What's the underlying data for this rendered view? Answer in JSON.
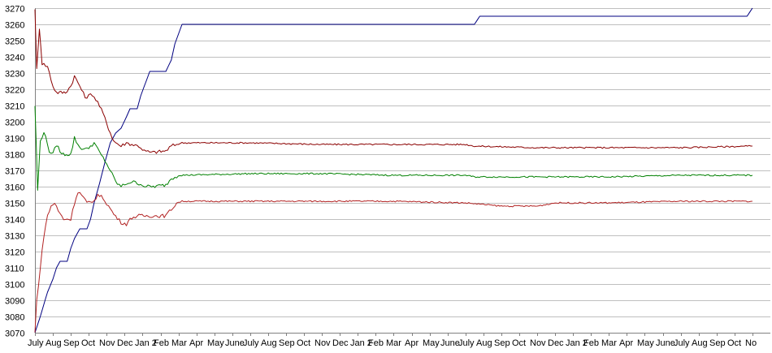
{
  "chart_data": {
    "type": "line",
    "title": "",
    "xlabel": "",
    "ylabel": "",
    "ylim": [
      3070,
      3270
    ],
    "yticks": [
      3070,
      3080,
      3090,
      3100,
      3110,
      3120,
      3130,
      3140,
      3150,
      3160,
      3170,
      3180,
      3190,
      3200,
      3210,
      3220,
      3230,
      3240,
      3250,
      3260,
      3270
    ],
    "grid": "horizontal",
    "legend": "none",
    "x_periods": 41,
    "xticks": [
      {
        "label": "July",
        "t": 0
      },
      {
        "label": "Aug",
        "t": 1
      },
      {
        "label": "Sep",
        "t": 2
      },
      {
        "label": "Oct",
        "t": 3
      },
      {
        "label": "Nov",
        "t": 4
      },
      {
        "label": "Dec",
        "t": 5
      },
      {
        "label": "Jan 2",
        "t": 6
      },
      {
        "label": "Feb",
        "t": 7
      },
      {
        "label": "Mar",
        "t": 8
      },
      {
        "label": "Apr",
        "t": 9
      },
      {
        "label": "May",
        "t": 10
      },
      {
        "label": "June",
        "t": 11
      },
      {
        "label": "July",
        "t": 12
      },
      {
        "label": "Aug",
        "t": 13
      },
      {
        "label": "Sep",
        "t": 14
      },
      {
        "label": "Oct",
        "t": 15
      },
      {
        "label": "Nov",
        "t": 16
      },
      {
        "label": "Dec",
        "t": 17
      },
      {
        "label": "Jan 2",
        "t": 18
      },
      {
        "label": "Feb",
        "t": 19
      },
      {
        "label": "Mar",
        "t": 20
      },
      {
        "label": "Apr",
        "t": 21
      },
      {
        "label": "May",
        "t": 22
      },
      {
        "label": "June",
        "t": 23
      },
      {
        "label": "July",
        "t": 24
      },
      {
        "label": "Aug",
        "t": 25
      },
      {
        "label": "Sep",
        "t": 26
      },
      {
        "label": "Oct",
        "t": 27
      },
      {
        "label": "Nov",
        "t": 28
      },
      {
        "label": "Dec",
        "t": 29
      },
      {
        "label": "Jan 2",
        "t": 30
      },
      {
        "label": "Feb",
        "t": 31
      },
      {
        "label": "Mar",
        "t": 32
      },
      {
        "label": "Apr",
        "t": 33
      },
      {
        "label": "May",
        "t": 34
      },
      {
        "label": "June",
        "t": 35
      },
      {
        "label": "July",
        "t": 36
      },
      {
        "label": "Aug",
        "t": 37
      },
      {
        "label": "Sep",
        "t": 38
      },
      {
        "label": "Oct",
        "t": 39
      },
      {
        "label": "No",
        "t": 40
      }
    ],
    "series": [
      {
        "color": "#000080",
        "points": [
          [
            0,
            3070
          ],
          [
            0.3,
            3080
          ],
          [
            0.7,
            3095
          ],
          [
            1.0,
            3103
          ],
          [
            1.2,
            3110
          ],
          [
            1.4,
            3114
          ],
          [
            1.8,
            3114
          ],
          [
            2.0,
            3122
          ],
          [
            2.2,
            3128
          ],
          [
            2.5,
            3134
          ],
          [
            2.9,
            3134
          ],
          [
            3.1,
            3140
          ],
          [
            3.3,
            3150
          ],
          [
            3.6,
            3162
          ],
          [
            3.9,
            3175
          ],
          [
            4.2,
            3187
          ],
          [
            4.5,
            3193
          ],
          [
            4.8,
            3196
          ],
          [
            5.1,
            3203
          ],
          [
            5.3,
            3208
          ],
          [
            5.7,
            3208
          ],
          [
            5.9,
            3216
          ],
          [
            6.2,
            3225
          ],
          [
            6.4,
            3231
          ],
          [
            7.3,
            3231
          ],
          [
            7.6,
            3238
          ],
          [
            7.8,
            3248
          ],
          [
            8.0,
            3254
          ],
          [
            8.2,
            3260
          ],
          [
            24.5,
            3260
          ],
          [
            24.8,
            3265
          ],
          [
            39.7,
            3265
          ],
          [
            40,
            3270
          ]
        ]
      },
      {
        "color": "#8b0000",
        "points": [
          [
            0,
            3270
          ],
          [
            0.1,
            3232
          ],
          [
            0.25,
            3258
          ],
          [
            0.4,
            3236
          ],
          [
            0.7,
            3234
          ],
          [
            1.0,
            3222
          ],
          [
            1.2,
            3218
          ],
          [
            1.7,
            3218
          ],
          [
            2.0,
            3222
          ],
          [
            2.2,
            3228
          ],
          [
            2.5,
            3222
          ],
          [
            2.8,
            3215
          ],
          [
            3.2,
            3217
          ],
          [
            3.5,
            3212
          ],
          [
            3.8,
            3205
          ],
          [
            4.1,
            3196
          ],
          [
            4.4,
            3188
          ],
          [
            4.8,
            3185
          ],
          [
            5.1,
            3187
          ],
          [
            5.4,
            3186
          ],
          [
            5.8,
            3185
          ],
          [
            6.1,
            3182
          ],
          [
            6.5,
            3181
          ],
          [
            7.3,
            3182
          ],
          [
            7.6,
            3185
          ],
          [
            7.9,
            3186
          ],
          [
            8.2,
            3187
          ],
          [
            12,
            3187
          ],
          [
            16,
            3186
          ],
          [
            20,
            3186
          ],
          [
            24,
            3186
          ],
          [
            24.5,
            3185
          ],
          [
            28,
            3184
          ],
          [
            32,
            3184
          ],
          [
            36,
            3184
          ],
          [
            40,
            3185
          ]
        ]
      },
      {
        "color": "#008000",
        "points": [
          [
            0,
            3210
          ],
          [
            0.15,
            3158
          ],
          [
            0.3,
            3188
          ],
          [
            0.5,
            3194
          ],
          [
            0.8,
            3182
          ],
          [
            1.0,
            3180
          ],
          [
            1.2,
            3186
          ],
          [
            1.5,
            3180
          ],
          [
            2.0,
            3180
          ],
          [
            2.2,
            3190
          ],
          [
            2.5,
            3184
          ],
          [
            2.9,
            3183
          ],
          [
            3.3,
            3187
          ],
          [
            3.6,
            3181
          ],
          [
            3.9,
            3176
          ],
          [
            4.2,
            3170
          ],
          [
            4.5,
            3163
          ],
          [
            4.8,
            3160
          ],
          [
            5.1,
            3162
          ],
          [
            5.4,
            3163
          ],
          [
            5.8,
            3162
          ],
          [
            6.2,
            3160
          ],
          [
            6.6,
            3160
          ],
          [
            7.3,
            3161
          ],
          [
            7.6,
            3165
          ],
          [
            8.0,
            3167
          ],
          [
            12,
            3168
          ],
          [
            16,
            3168
          ],
          [
            20,
            3167
          ],
          [
            24,
            3167
          ],
          [
            24.5,
            3166
          ],
          [
            28,
            3166
          ],
          [
            32,
            3166
          ],
          [
            36,
            3167
          ],
          [
            40,
            3167
          ]
        ]
      },
      {
        "color": "#b22222",
        "points": [
          [
            0,
            3070
          ],
          [
            0.1,
            3090
          ],
          [
            0.3,
            3110
          ],
          [
            0.5,
            3130
          ],
          [
            0.7,
            3142
          ],
          [
            0.9,
            3148
          ],
          [
            1.1,
            3150
          ],
          [
            1.3,
            3145
          ],
          [
            1.6,
            3140
          ],
          [
            2.0,
            3140
          ],
          [
            2.2,
            3150
          ],
          [
            2.4,
            3157
          ],
          [
            2.6,
            3155
          ],
          [
            2.9,
            3150
          ],
          [
            3.2,
            3150
          ],
          [
            3.5,
            3155
          ],
          [
            3.8,
            3153
          ],
          [
            4.1,
            3148
          ],
          [
            4.4,
            3143
          ],
          [
            4.8,
            3138
          ],
          [
            5.1,
            3137
          ],
          [
            5.4,
            3141
          ],
          [
            5.8,
            3142
          ],
          [
            6.4,
            3142
          ],
          [
            7.3,
            3142
          ],
          [
            7.6,
            3146
          ],
          [
            7.9,
            3150
          ],
          [
            8.2,
            3151
          ],
          [
            12,
            3151
          ],
          [
            16,
            3151
          ],
          [
            20,
            3151
          ],
          [
            24,
            3150
          ],
          [
            25,
            3149
          ],
          [
            26,
            3148
          ],
          [
            28,
            3148
          ],
          [
            29,
            3150
          ],
          [
            32,
            3150
          ],
          [
            36,
            3151
          ],
          [
            40,
            3151
          ]
        ]
      }
    ]
  }
}
